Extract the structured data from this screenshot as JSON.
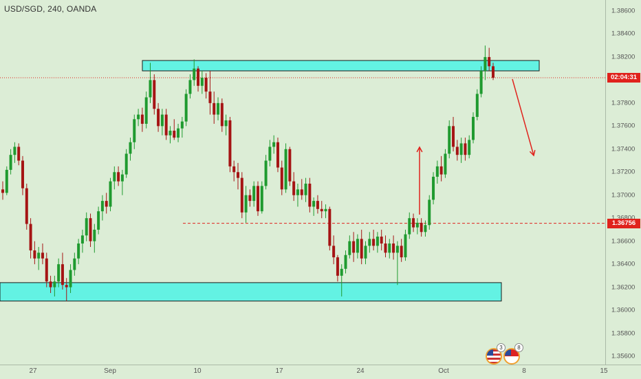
{
  "header": {
    "symbol_title": "USD/SGD, 240, OANDA"
  },
  "price_scale": {
    "ticks": [
      "1.38600",
      "1.38400",
      "1.38200",
      "1.38000",
      "1.37800",
      "1.37600",
      "1.37400",
      "1.37200",
      "1.37000",
      "1.36800",
      "1.36600",
      "1.36400",
      "1.36200",
      "1.36000",
      "1.35800",
      "1.35600"
    ],
    "countdown_tag": "02:04:31",
    "level_tag": "1.36756"
  },
  "time_scale": {
    "labels": [
      "27",
      "Sep",
      "10",
      "17",
      "24",
      "Oct",
      "8",
      "15"
    ]
  },
  "events": {
    "us_count": "3",
    "sg_count": "8"
  },
  "colors": {
    "background": "#dcedd6",
    "bull_candle": "#1f9a2f",
    "bear_candle": "#a51414",
    "zone_fill": "#63f2e3",
    "level_line": "#e0221c",
    "arrow": "#e0221c"
  },
  "chart_data": {
    "type": "candlestick",
    "title": "USD/SGD, 240, OANDA",
    "ylim": [
      1.3555,
      1.3875
    ],
    "x_labels": [
      "27",
      "Sep",
      "10",
      "17",
      "24",
      "Oct",
      "8",
      "15"
    ],
    "current_price_countdown": "02:04:31",
    "horizontal_level": 1.36756,
    "resistance_zone": [
      1.3808,
      1.3817
    ],
    "support_zone": [
      1.3608,
      1.3624
    ],
    "candles": [
      [
        1.3705,
        1.3712,
        1.3696,
        1.3702
      ],
      [
        1.3702,
        1.3725,
        1.37,
        1.3722
      ],
      [
        1.3722,
        1.374,
        1.3718,
        1.3735
      ],
      [
        1.3735,
        1.3746,
        1.3728,
        1.3742
      ],
      [
        1.3742,
        1.3745,
        1.3726,
        1.373
      ],
      [
        1.373,
        1.3734,
        1.37,
        1.3706
      ],
      [
        1.3706,
        1.371,
        1.367,
        1.3675
      ],
      [
        1.3675,
        1.368,
        1.3645,
        1.3652
      ],
      [
        1.3652,
        1.366,
        1.364,
        1.3645
      ],
      [
        1.3645,
        1.3655,
        1.3635,
        1.365
      ],
      [
        1.365,
        1.3658,
        1.364,
        1.3645
      ],
      [
        1.3645,
        1.365,
        1.362,
        1.3625
      ],
      [
        1.3625,
        1.363,
        1.3615,
        1.362
      ],
      [
        1.362,
        1.363,
        1.3612,
        1.3625
      ],
      [
        1.3625,
        1.3645,
        1.362,
        1.364
      ],
      [
        1.364,
        1.365,
        1.3618,
        1.3622
      ],
      [
        1.3622,
        1.3628,
        1.3608,
        1.362
      ],
      [
        1.362,
        1.364,
        1.3615,
        1.3635
      ],
      [
        1.3635,
        1.365,
        1.363,
        1.3645
      ],
      [
        1.3645,
        1.3662,
        1.364,
        1.3658
      ],
      [
        1.3658,
        1.367,
        1.365,
        1.3665
      ],
      [
        1.3665,
        1.3685,
        1.366,
        1.368
      ],
      [
        1.368,
        1.3684,
        1.3655,
        1.366
      ],
      [
        1.366,
        1.3675,
        1.365,
        1.367
      ],
      [
        1.367,
        1.369,
        1.3666,
        1.3686
      ],
      [
        1.3686,
        1.37,
        1.3678,
        1.3695
      ],
      [
        1.3695,
        1.3702,
        1.3684,
        1.369
      ],
      [
        1.369,
        1.3715,
        1.3686,
        1.3712
      ],
      [
        1.3712,
        1.3725,
        1.3705,
        1.372
      ],
      [
        1.372,
        1.3725,
        1.3708,
        1.3712
      ],
      [
        1.3712,
        1.3722,
        1.37,
        1.3718
      ],
      [
        1.3718,
        1.374,
        1.3715,
        1.3736
      ],
      [
        1.3736,
        1.375,
        1.373,
        1.3746
      ],
      [
        1.3746,
        1.377,
        1.374,
        1.3766
      ],
      [
        1.3766,
        1.3775,
        1.376,
        1.377
      ],
      [
        1.377,
        1.3776,
        1.3755,
        1.3762
      ],
      [
        1.3762,
        1.379,
        1.3758,
        1.3785
      ],
      [
        1.3785,
        1.3815,
        1.378,
        1.38
      ],
      [
        1.38,
        1.3805,
        1.377,
        1.3775
      ],
      [
        1.3775,
        1.378,
        1.3755,
        1.376
      ],
      [
        1.376,
        1.3775,
        1.3752,
        1.377
      ],
      [
        1.377,
        1.3775,
        1.3748,
        1.3752
      ],
      [
        1.3752,
        1.376,
        1.3745,
        1.3756
      ],
      [
        1.3756,
        1.3766,
        1.3748,
        1.375
      ],
      [
        1.375,
        1.3762,
        1.3746,
        1.3758
      ],
      [
        1.3758,
        1.3768,
        1.375,
        1.3764
      ],
      [
        1.3764,
        1.3792,
        1.376,
        1.3788
      ],
      [
        1.3788,
        1.3805,
        1.3784,
        1.38
      ],
      [
        1.38,
        1.3818,
        1.3795,
        1.381
      ],
      [
        1.381,
        1.3812,
        1.379,
        1.3795
      ],
      [
        1.3795,
        1.3808,
        1.3788,
        1.3802
      ],
      [
        1.3802,
        1.3806,
        1.3784,
        1.379
      ],
      [
        1.379,
        1.3808,
        1.377,
        1.378
      ],
      [
        1.378,
        1.379,
        1.3762,
        1.377
      ],
      [
        1.377,
        1.3785,
        1.3765,
        1.378
      ],
      [
        1.378,
        1.3784,
        1.3755,
        1.376
      ],
      [
        1.376,
        1.377,
        1.3752,
        1.3765
      ],
      [
        1.3765,
        1.3768,
        1.372,
        1.3725
      ],
      [
        1.3725,
        1.373,
        1.3712,
        1.372
      ],
      [
        1.372,
        1.3728,
        1.3705,
        1.3715
      ],
      [
        1.3715,
        1.372,
        1.368,
        1.3685
      ],
      [
        1.3685,
        1.3708,
        1.3676,
        1.37
      ],
      [
        1.37,
        1.3705,
        1.369,
        1.3695
      ],
      [
        1.3695,
        1.3712,
        1.369,
        1.3708
      ],
      [
        1.3708,
        1.3712,
        1.3682,
        1.3686
      ],
      [
        1.3686,
        1.3712,
        1.3684,
        1.3708
      ],
      [
        1.3708,
        1.3735,
        1.3705,
        1.373
      ],
      [
        1.373,
        1.3748,
        1.3725,
        1.3742
      ],
      [
        1.3742,
        1.3752,
        1.3736,
        1.3746
      ],
      [
        1.3746,
        1.375,
        1.372,
        1.3724
      ],
      [
        1.3724,
        1.373,
        1.37,
        1.3705
      ],
      [
        1.3705,
        1.3745,
        1.3702,
        1.374
      ],
      [
        1.374,
        1.3742,
        1.3708,
        1.3712
      ],
      [
        1.3712,
        1.372,
        1.3695,
        1.37
      ],
      [
        1.37,
        1.371,
        1.369,
        1.3705
      ],
      [
        1.3705,
        1.3714,
        1.3696,
        1.37
      ],
      [
        1.37,
        1.3715,
        1.3694,
        1.371
      ],
      [
        1.371,
        1.3715,
        1.3685,
        1.369
      ],
      [
        1.369,
        1.3698,
        1.3682,
        1.3695
      ],
      [
        1.3695,
        1.37,
        1.3684,
        1.3688
      ],
      [
        1.3688,
        1.3695,
        1.368,
        1.3686
      ],
      [
        1.3686,
        1.3692,
        1.368,
        1.3688
      ],
      [
        1.3688,
        1.369,
        1.3652,
        1.3656
      ],
      [
        1.3656,
        1.3665,
        1.364,
        1.3646
      ],
      [
        1.3646,
        1.3648,
        1.3625,
        1.363
      ],
      [
        1.363,
        1.364,
        1.3612,
        1.3636
      ],
      [
        1.3636,
        1.3652,
        1.3632,
        1.3648
      ],
      [
        1.3648,
        1.3665,
        1.3645,
        1.366
      ],
      [
        1.366,
        1.3668,
        1.3642,
        1.365
      ],
      [
        1.365,
        1.3666,
        1.3645,
        1.3662
      ],
      [
        1.3662,
        1.367,
        1.364,
        1.3645
      ],
      [
        1.3645,
        1.366,
        1.364,
        1.3656
      ],
      [
        1.3656,
        1.3668,
        1.365,
        1.3662
      ],
      [
        1.3662,
        1.367,
        1.3652,
        1.3656
      ],
      [
        1.3656,
        1.3668,
        1.365,
        1.3664
      ],
      [
        1.3664,
        1.367,
        1.3652,
        1.3658
      ],
      [
        1.3658,
        1.3665,
        1.3646,
        1.365
      ],
      [
        1.365,
        1.3662,
        1.3645,
        1.3658
      ],
      [
        1.3658,
        1.3665,
        1.3644,
        1.365
      ],
      [
        1.365,
        1.366,
        1.3622,
        1.3656
      ],
      [
        1.3656,
        1.3662,
        1.3642,
        1.3646
      ],
      [
        1.3646,
        1.367,
        1.3643,
        1.3666
      ],
      [
        1.3666,
        1.3685,
        1.3662,
        1.368
      ],
      [
        1.368,
        1.3684,
        1.3668,
        1.3672
      ],
      [
        1.3672,
        1.368,
        1.3666,
        1.3676
      ],
      [
        1.3676,
        1.368,
        1.3664,
        1.3668
      ],
      [
        1.3668,
        1.3678,
        1.3664,
        1.3674
      ],
      [
        1.3674,
        1.37,
        1.367,
        1.3696
      ],
      [
        1.3696,
        1.372,
        1.3692,
        1.3716
      ],
      [
        1.3716,
        1.373,
        1.371,
        1.3725
      ],
      [
        1.3725,
        1.3734,
        1.3712,
        1.3718
      ],
      [
        1.3718,
        1.374,
        1.3715,
        1.3736
      ],
      [
        1.3736,
        1.3765,
        1.3732,
        1.376
      ],
      [
        1.376,
        1.3768,
        1.3738,
        1.3742
      ],
      [
        1.3742,
        1.3748,
        1.373,
        1.3735
      ],
      [
        1.3735,
        1.375,
        1.3728,
        1.3745
      ],
      [
        1.3745,
        1.375,
        1.373,
        1.3735
      ],
      [
        1.3735,
        1.3752,
        1.3732,
        1.3748
      ],
      [
        1.3748,
        1.3772,
        1.3745,
        1.3768
      ],
      [
        1.3768,
        1.3792,
        1.3765,
        1.3788
      ],
      [
        1.3788,
        1.3812,
        1.3785,
        1.3808
      ],
      [
        1.3808,
        1.383,
        1.38,
        1.382
      ],
      [
        1.382,
        1.3828,
        1.3808,
        1.3812
      ],
      [
        1.3812,
        1.3815,
        1.38,
        1.3802
      ]
    ]
  },
  "annotations": {
    "resistance_zone": "cyan rectangle",
    "support_zone": "cyan rectangle",
    "up_arrow": "red arrow up",
    "down_arrow": "red arrow down"
  }
}
